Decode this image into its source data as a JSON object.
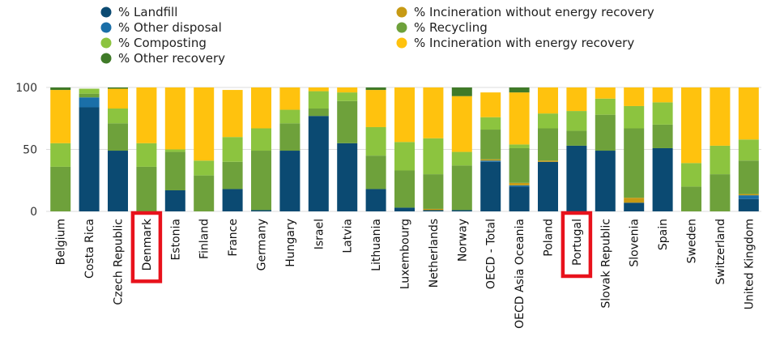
{
  "chart_data": {
    "type": "bar",
    "stacked": true,
    "ylim": [
      0,
      100
    ],
    "yticks": [
      0,
      50,
      100
    ],
    "grid": true,
    "legend_position": "top",
    "categories": [
      "Belgium",
      "Costa Rica",
      "Czech Republic",
      "Denmark",
      "Estonia",
      "Finland",
      "France",
      "Germany",
      "Hungary",
      "Israel",
      "Latvia",
      "Lithuania",
      "Luxembourg",
      "Netherlands",
      "Norway",
      "OECD - Total",
      "OECD Asia Oceania",
      "Poland",
      "Portugal",
      "Slovak Republic",
      "Slovenia",
      "Spain",
      "Sweden",
      "Switzerland",
      "United Kingdom"
    ],
    "highlighted": [
      "Denmark",
      "Portugal"
    ],
    "highlight_color": "#e8121c",
    "series": [
      {
        "name": "% Landfill",
        "color": "#0b4a72",
        "values": [
          0,
          84,
          49,
          0,
          17,
          0,
          18,
          1,
          49,
          77,
          55,
          18,
          3,
          1,
          1,
          40,
          20,
          40,
          53,
          49,
          7,
          51,
          0,
          0,
          10
        ]
      },
      {
        "name": "% Other disposal",
        "color": "#1a6fa8",
        "values": [
          0,
          8,
          0,
          0,
          0,
          0,
          0,
          0,
          0,
          0,
          0,
          0,
          0,
          0,
          0,
          1,
          1,
          0,
          0,
          0,
          0,
          0,
          0,
          0,
          3
        ]
      },
      {
        "name": "% Incineration without energy recovery",
        "color": "#c79a14",
        "values": [
          0,
          0,
          0,
          0,
          0,
          0,
          0,
          0,
          0,
          0,
          0,
          0,
          0,
          1,
          0,
          1,
          2,
          1,
          0,
          0,
          4,
          0,
          0,
          0,
          1
        ]
      },
      {
        "name": "% Recycling",
        "color": "#6ea13b",
        "values": [
          36,
          3,
          22,
          36,
          31,
          29,
          22,
          48,
          22,
          6,
          34,
          27,
          30,
          28,
          36,
          24,
          28,
          26,
          12,
          29,
          56,
          19,
          20,
          30,
          27
        ]
      },
      {
        "name": "% Composting",
        "color": "#8cc43f",
        "values": [
          19,
          4,
          12,
          19,
          2,
          12,
          20,
          18,
          11,
          14,
          7,
          23,
          23,
          29,
          11,
          10,
          3,
          12,
          16,
          13,
          18,
          18,
          19,
          23,
          17
        ]
      },
      {
        "name": "% Incineration with energy recovery",
        "color": "#ffc20e",
        "values": [
          43,
          0,
          16,
          45,
          50,
          59,
          38,
          33,
          18,
          3,
          4,
          30,
          44,
          41,
          45,
          20,
          42,
          21,
          19,
          9,
          15,
          12,
          61,
          47,
          42
        ]
      },
      {
        "name": "% Other recovery",
        "color": "#3f7a28",
        "values": [
          2,
          0,
          1,
          0,
          0,
          0,
          0,
          0,
          0,
          0,
          0,
          2,
          0,
          0,
          7,
          0,
          4,
          0,
          0,
          0,
          0,
          0,
          0,
          0,
          0
        ]
      }
    ],
    "legend_order": [
      "% Landfill",
      "% Other disposal",
      "% Composting",
      "% Other recovery",
      "% Incineration without energy recovery",
      "% Recycling",
      "% Incineration with energy recovery"
    ]
  }
}
